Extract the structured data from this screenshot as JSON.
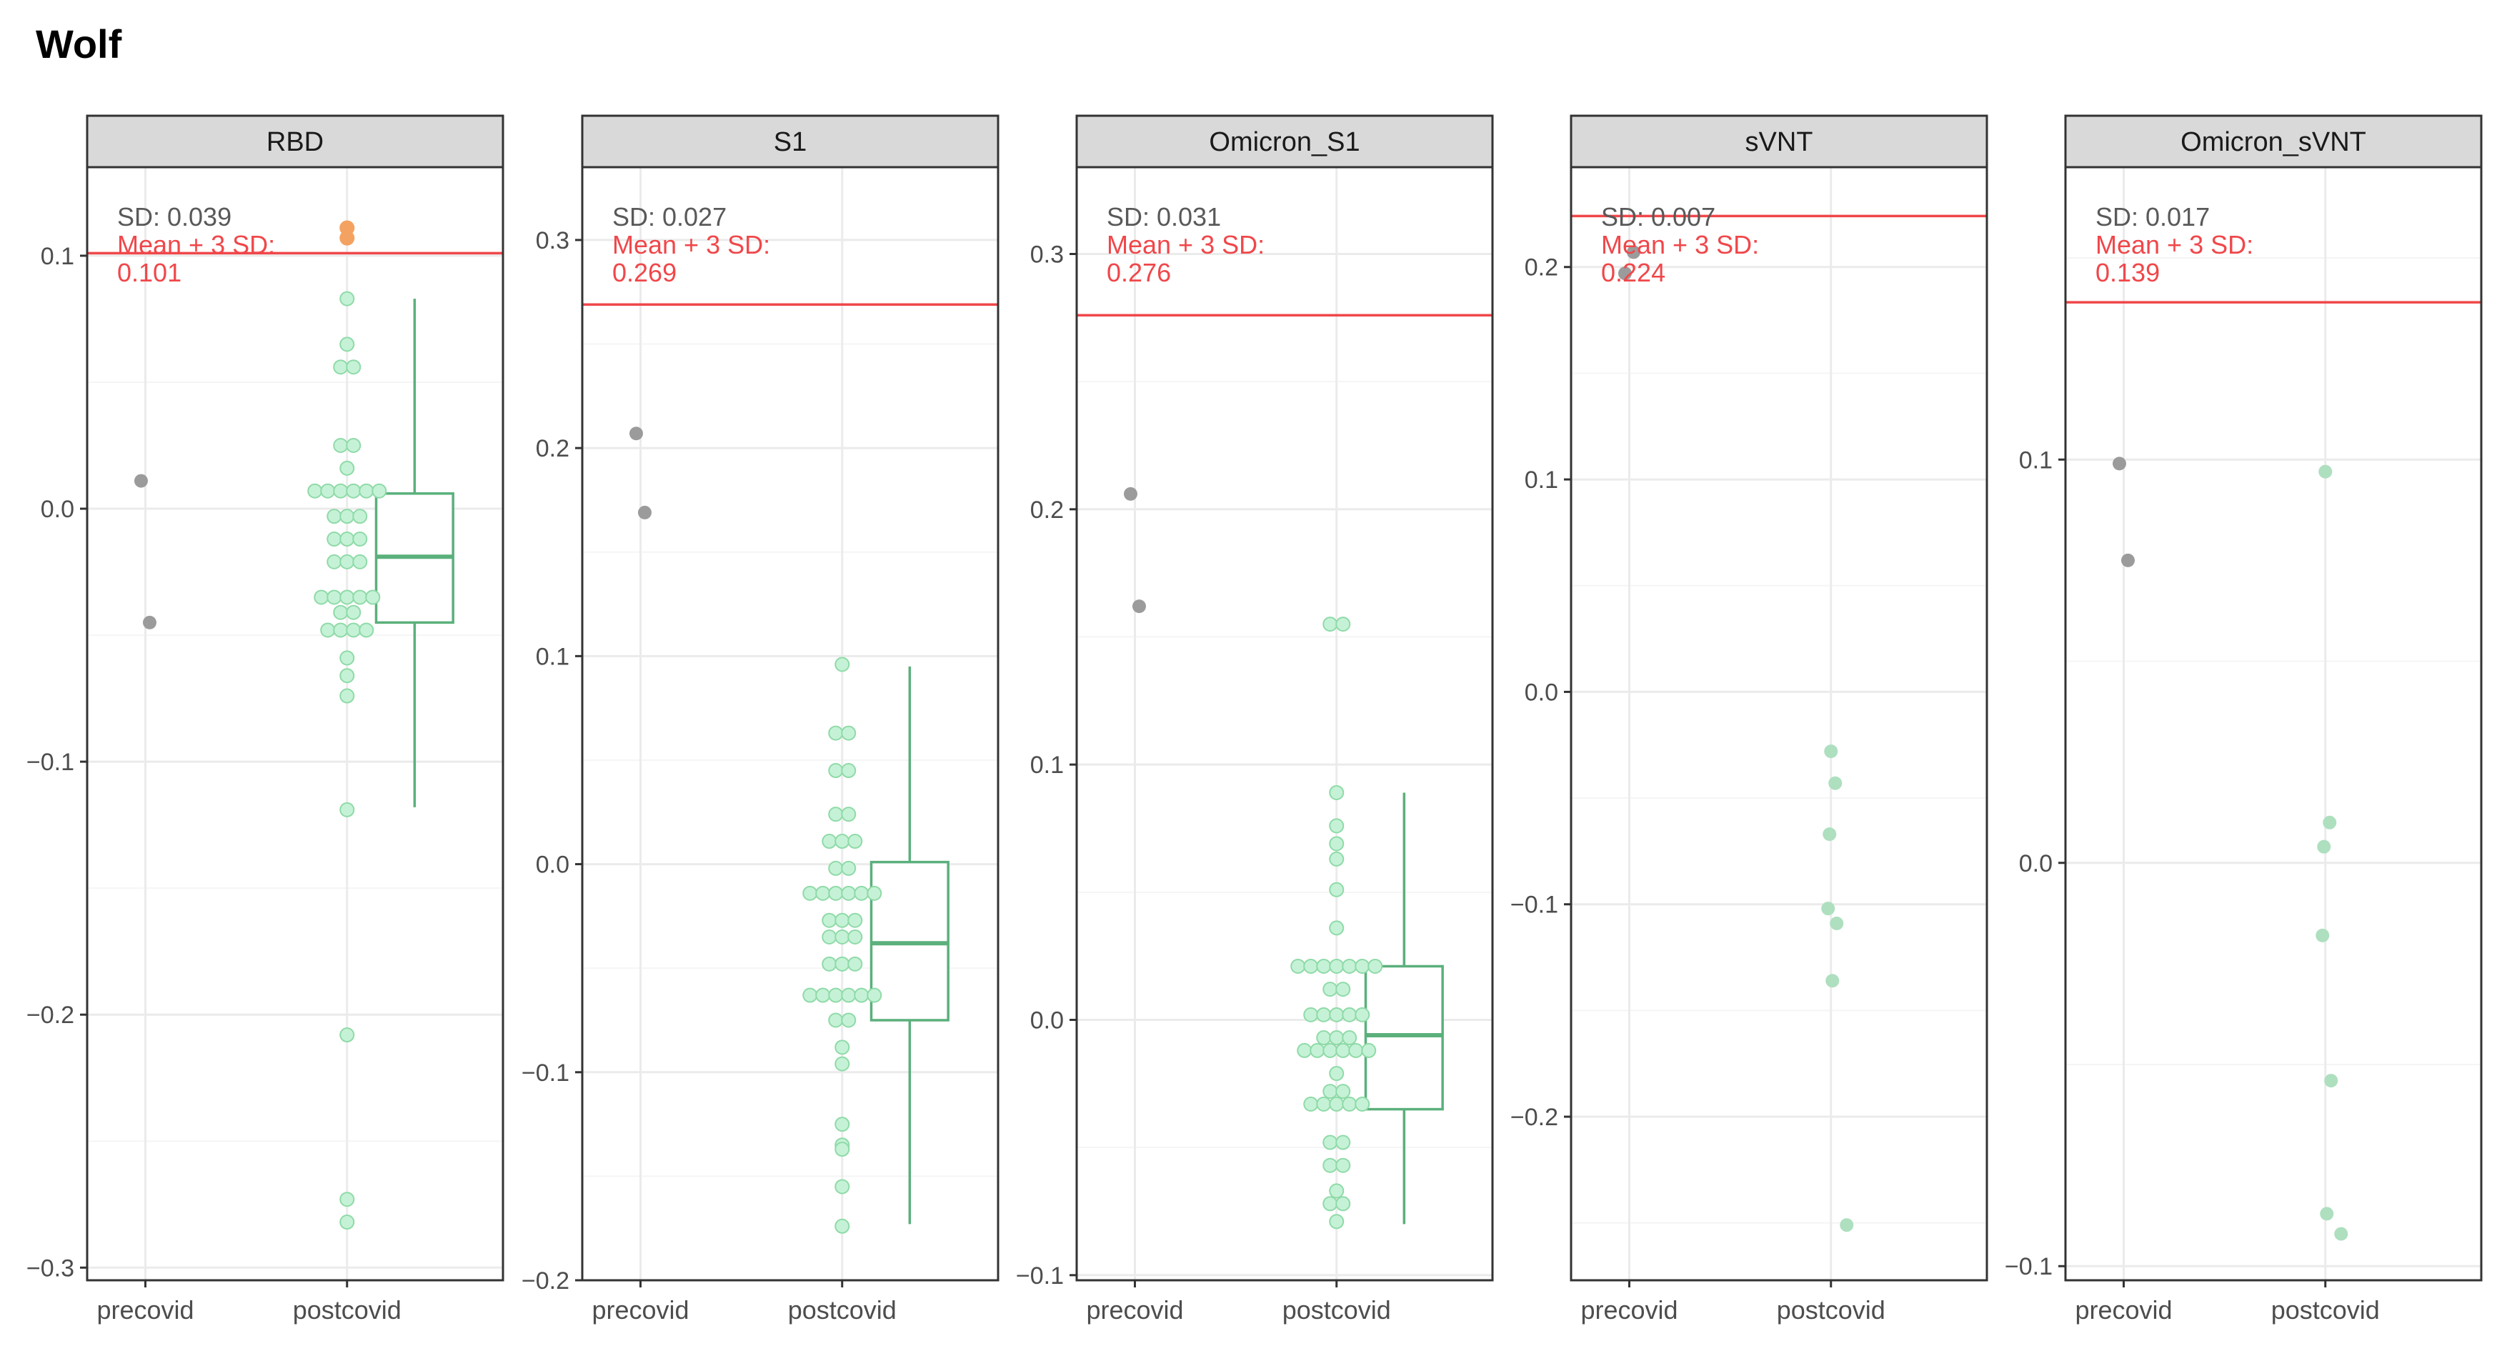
{
  "title": "Wolf",
  "colors": {
    "threshold": "#f0474a",
    "precovid_point": "#9b9b9b",
    "postcovid_point_fill": "#c5f2d6",
    "postcovid_point_stroke": "#8fdaa8",
    "postcovid_solid": "#aedfbf",
    "above_threshold": "#f4a261",
    "box": "#5bb07c",
    "sd_text": "#595959",
    "grid_major": "#ebebeb",
    "grid_minor": "#f5f5f5",
    "strip_fill": "#d9d9d9"
  },
  "chart_data": [
    {
      "type": "box+dotplot",
      "panel": "RBD",
      "categories": [
        "precovid",
        "postcovid"
      ],
      "ylim": [
        -0.305,
        0.135
      ],
      "yticks": [
        0.1,
        0.0,
        -0.1,
        -0.2,
        -0.3
      ],
      "ytick_labels": [
        "0.1",
        "0.0",
        "−0.1",
        "−0.2",
        "−0.3"
      ],
      "sd_label": "SD: 0.039",
      "threshold_label": [
        "Mean + 3 SD:",
        "0.101"
      ],
      "threshold": 0.101,
      "precovid": [
        0.011,
        -0.045
      ],
      "postcovid": [
        0.111,
        0.107,
        0.083,
        0.065,
        0.056,
        0.056,
        0.025,
        0.025,
        0.016,
        0.007,
        0.007,
        0.007,
        0.007,
        0.007,
        0.007,
        -0.003,
        -0.003,
        -0.003,
        -0.012,
        -0.012,
        -0.012,
        -0.021,
        -0.021,
        -0.021,
        -0.035,
        -0.035,
        -0.035,
        -0.035,
        -0.035,
        -0.041,
        -0.041,
        -0.048,
        -0.048,
        -0.048,
        -0.048,
        -0.059,
        -0.066,
        -0.074,
        -0.119,
        -0.208,
        -0.273,
        -0.282
      ],
      "box": {
        "q1": -0.045,
        "median": -0.019,
        "q3": 0.006,
        "whisker_low": -0.118,
        "whisker_high": 0.083
      }
    },
    {
      "type": "box+dotplot",
      "panel": "S1",
      "categories": [
        "precovid",
        "postcovid"
      ],
      "ylim": [
        -0.2,
        0.335
      ],
      "yticks": [
        0.3,
        0.2,
        0.1,
        0.0,
        -0.1,
        -0.2
      ],
      "ytick_labels": [
        "0.3",
        "0.2",
        "0.1",
        "0.0",
        "−0.1",
        "−0.2"
      ],
      "sd_label": "SD: 0.027",
      "threshold_label": [
        "Mean + 3 SD:",
        "0.269"
      ],
      "threshold": 0.269,
      "precovid": [
        0.207,
        0.169
      ],
      "postcovid": [
        0.096,
        0.063,
        0.063,
        0.045,
        0.045,
        0.024,
        0.024,
        0.011,
        0.011,
        0.011,
        -0.002,
        -0.002,
        -0.014,
        -0.014,
        -0.014,
        -0.014,
        -0.014,
        -0.014,
        -0.027,
        -0.027,
        -0.027,
        -0.035,
        -0.035,
        -0.035,
        -0.048,
        -0.048,
        -0.048,
        -0.063,
        -0.063,
        -0.063,
        -0.063,
        -0.063,
        -0.063,
        -0.075,
        -0.075,
        -0.088,
        -0.096,
        -0.125,
        -0.135,
        -0.137,
        -0.155,
        -0.174
      ],
      "box": {
        "q1": -0.075,
        "median": -0.038,
        "q3": 0.001,
        "whisker_low": -0.173,
        "whisker_high": 0.095
      }
    },
    {
      "type": "box+dotplot",
      "panel": "Omicron_S1",
      "categories": [
        "precovid",
        "postcovid"
      ],
      "ylim": [
        -0.102,
        0.334
      ],
      "yticks": [
        0.3,
        0.2,
        0.1,
        0.0,
        -0.1
      ],
      "ytick_labels": [
        "0.3",
        "0.2",
        "0.1",
        "0.0",
        "−0.1"
      ],
      "sd_label": "SD: 0.031",
      "threshold_label": [
        "Mean + 3 SD:",
        "0.276"
      ],
      "threshold": 0.276,
      "precovid": [
        0.206,
        0.162
      ],
      "postcovid": [
        0.155,
        0.155,
        0.089,
        0.076,
        0.069,
        0.063,
        0.051,
        0.036,
        0.021,
        0.021,
        0.021,
        0.021,
        0.021,
        0.021,
        0.021,
        0.012,
        0.012,
        0.002,
        0.002,
        0.002,
        0.002,
        0.002,
        -0.007,
        -0.007,
        -0.007,
        -0.012,
        -0.012,
        -0.012,
        -0.012,
        -0.012,
        -0.012,
        -0.021,
        -0.028,
        -0.028,
        -0.033,
        -0.033,
        -0.033,
        -0.033,
        -0.033,
        -0.048,
        -0.048,
        -0.057,
        -0.057,
        -0.067,
        -0.072,
        -0.072,
        -0.079
      ],
      "box": {
        "q1": -0.035,
        "median": -0.006,
        "q3": 0.021,
        "whisker_low": -0.08,
        "whisker_high": 0.089
      }
    },
    {
      "type": "dotplot",
      "panel": "sVNT",
      "categories": [
        "precovid",
        "postcovid"
      ],
      "ylim": [
        -0.277,
        0.247
      ],
      "yticks": [
        0.2,
        0.1,
        0.0,
        -0.1,
        -0.2
      ],
      "ytick_labels": [
        "0.2",
        "0.1",
        "0.0",
        "−0.1",
        "−0.2"
      ],
      "sd_label": "SD: 0.007",
      "threshold_label": [
        "Mean + 3 SD:",
        "0.224"
      ],
      "threshold": 0.224,
      "precovid": [
        0.197,
        0.207
      ],
      "postcovid": [
        -0.028,
        -0.043,
        -0.067,
        -0.102,
        -0.109,
        -0.136,
        -0.251
      ]
    },
    {
      "type": "dotplot",
      "panel": "Omicron_sVNT",
      "categories": [
        "precovid",
        "postcovid"
      ],
      "ylim": [
        -0.1035,
        0.1725
      ],
      "yticks": [
        0.1,
        0.0,
        -0.1
      ],
      "ytick_labels": [
        "0.1",
        "0.0",
        "−0.1"
      ],
      "sd_label": "SD: 0.017",
      "threshold_label": [
        "Mean + 3 SD:",
        "0.139"
      ],
      "threshold": 0.139,
      "precovid": [
        0.099,
        0.075
      ],
      "postcovid": [
        0.097,
        0.01,
        0.004,
        -0.018,
        -0.054,
        -0.087,
        -0.092
      ]
    }
  ]
}
